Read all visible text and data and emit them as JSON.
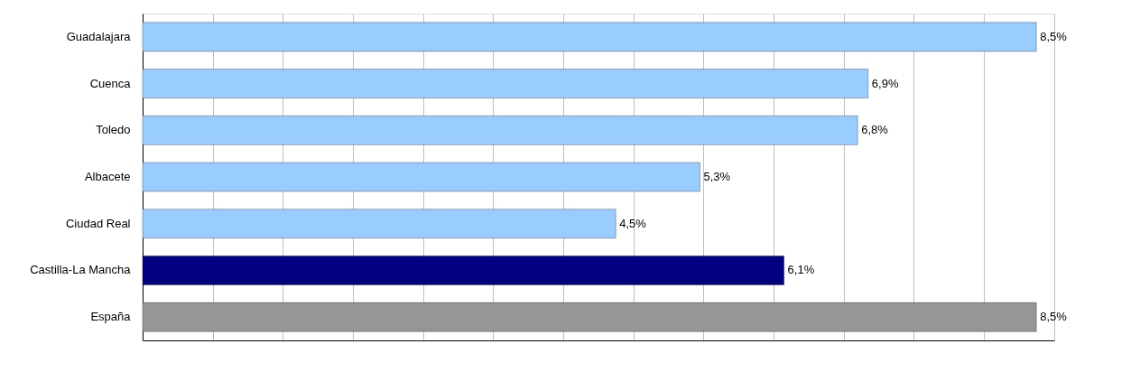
{
  "chart_data": {
    "type": "bar",
    "orientation": "horizontal",
    "categories": [
      "Guadalajara",
      "Cuenca",
      "Toledo",
      "Albacete",
      "Ciudad Real",
      "Castilla-La Mancha",
      "España"
    ],
    "values": [
      8.5,
      6.9,
      6.8,
      5.3,
      4.5,
      6.1,
      8.5
    ],
    "colors": [
      "#99ccff",
      "#99ccff",
      "#99ccff",
      "#99ccff",
      "#99ccff",
      "#000080",
      "#969696"
    ],
    "value_labels": [
      "8,5%",
      "6,9%",
      "6,8%",
      "5,3%",
      "4,5%",
      "6,1%",
      "8,5%"
    ],
    "xlim": [
      0,
      8.67
    ],
    "xticks": [
      {
        "value": 0,
        "label": null
      },
      {
        "value": 0.67,
        "label": null
      },
      {
        "value": 1.33,
        "label": null
      },
      {
        "value": 2,
        "label": null
      },
      {
        "value": 2.67,
        "label": null
      },
      {
        "value": 3.33,
        "label": null
      },
      {
        "value": 4,
        "label": null
      },
      {
        "value": 4.67,
        "label": null
      },
      {
        "value": 5.33,
        "label": null
      },
      {
        "value": 6,
        "label": null
      },
      {
        "value": 6.67,
        "label": null
      },
      {
        "value": 7.33,
        "label": null
      },
      {
        "value": 8,
        "label": null
      },
      {
        "value": 8.67,
        "label": null
      }
    ],
    "grid": "x",
    "tick_labels": "y"
  }
}
